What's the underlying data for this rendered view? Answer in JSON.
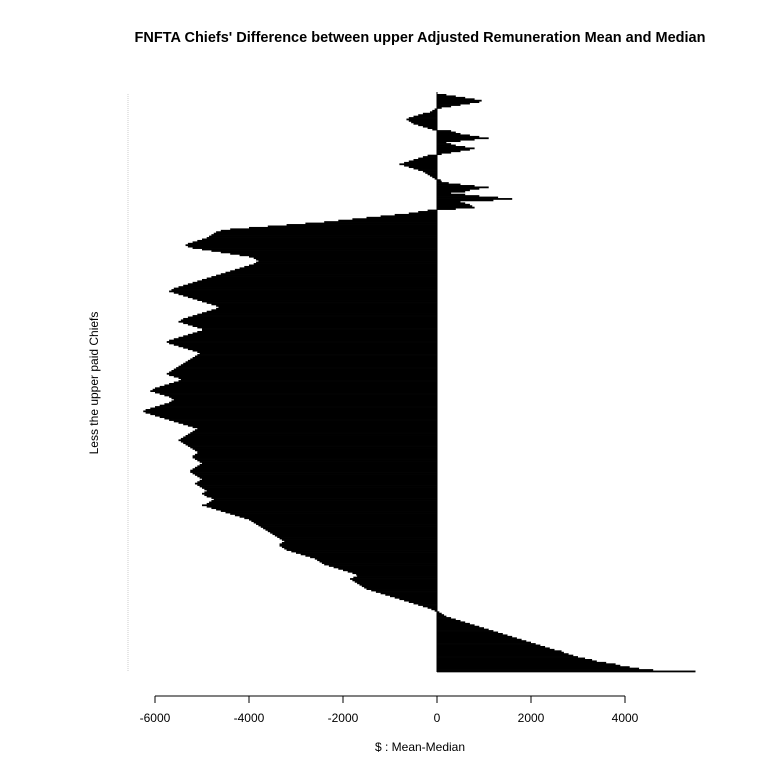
{
  "chart_data": {
    "type": "bar",
    "orientation": "horizontal",
    "title": "FNFTA Chiefs' Difference between upper Adjusted Remuneration Mean and Median",
    "xlabel": "$ : Mean-Median",
    "ylabel": "Less the upper paid Chiefs",
    "xlim": [
      -6500,
      5500
    ],
    "x_ticks": [
      -6000,
      -4000,
      -2000,
      0,
      2000,
      4000
    ],
    "tick_labels": [
      "-6000",
      "-4000",
      "-2000",
      "0",
      "2000",
      "4000"
    ],
    "grid": false,
    "legend": "none",
    "bar_color": "#000000",
    "series": [
      {
        "values": [
          5500,
          4600,
          4300,
          4100,
          3900,
          3800,
          3600,
          3400,
          3300,
          3150,
          3000,
          2900,
          2800,
          2700,
          2650,
          2500,
          2400,
          2300,
          2200,
          2100,
          2000,
          1900,
          1800,
          1700,
          1600,
          1500,
          1400,
          1300,
          1200,
          1100,
          1000,
          900,
          800,
          700,
          600,
          500,
          400,
          300,
          200,
          150,
          100,
          50,
          -50,
          -120,
          -200,
          -300,
          -400,
          -500,
          -600,
          -700,
          -800,
          -900,
          -1000,
          -1100,
          -1200,
          -1300,
          -1400,
          -1500,
          -1550,
          -1600,
          -1650,
          -1700,
          -1750,
          -1800,
          -1850,
          -1780,
          -1700,
          -1720,
          -1800,
          -1900,
          -2000,
          -2100,
          -2200,
          -2300,
          -2400,
          -2450,
          -2500,
          -2550,
          -2600,
          -2700,
          -2800,
          -2900,
          -3000,
          -3100,
          -3200,
          -3250,
          -3300,
          -3350,
          -3350,
          -3300,
          -3250,
          -3300,
          -3350,
          -3400,
          -3450,
          -3500,
          -3550,
          -3600,
          -3650,
          -3700,
          -3750,
          -3800,
          -3850,
          -3900,
          -3950,
          -4000,
          -4100,
          -4200,
          -4300,
          -4400,
          -4500,
          -4600,
          -4700,
          -4800,
          -4900,
          -5000,
          -4900,
          -4850,
          -4800,
          -4750,
          -4800,
          -4900,
          -4950,
          -5000,
          -4950,
          -4900,
          -4950,
          -5000,
          -5050,
          -5100,
          -5150,
          -5100,
          -5050,
          -5000,
          -5050,
          -5100,
          -5150,
          -5200,
          -5250,
          -5250,
          -5200,
          -5150,
          -5100,
          -5050,
          -5000,
          -5050,
          -5100,
          -5150,
          -5200,
          -5200,
          -5150,
          -5100,
          -5100,
          -5150,
          -5200,
          -5250,
          -5300,
          -5350,
          -5400,
          -5450,
          -5500,
          -5450,
          -5400,
          -5350,
          -5300,
          -5250,
          -5200,
          -5150,
          -5100,
          -5200,
          -5300,
          -5400,
          -5500,
          -5600,
          -5700,
          -5800,
          -5900,
          -6000,
          -6100,
          -6200,
          -6250,
          -6200,
          -6100,
          -6000,
          -5900,
          -5800,
          -5700,
          -5650,
          -5600,
          -5650,
          -5700,
          -5800,
          -5900,
          -6000,
          -6100,
          -6050,
          -6000,
          -5900,
          -5800,
          -5700,
          -5600,
          -5500,
          -5450,
          -5500,
          -5600,
          -5700,
          -5750,
          -5700,
          -5650,
          -5600,
          -5550,
          -5500,
          -5450,
          -5400,
          -5350,
          -5300,
          -5250,
          -5200,
          -5150,
          -5100,
          -5050,
          -5100,
          -5200,
          -5300,
          -5400,
          -5500,
          -5600,
          -5700,
          -5750,
          -5700,
          -5600,
          -5500,
          -5400,
          -5300,
          -5200,
          -5100,
          -5000,
          -5000,
          -5100,
          -5200,
          -5300,
          -5400,
          -5500,
          -5450,
          -5400,
          -5300,
          -5200,
          -5100,
          -5000,
          -4900,
          -4800,
          -4700,
          -4650,
          -4700,
          -4800,
          -4900,
          -5000,
          -5100,
          -5200,
          -5300,
          -5400,
          -5500,
          -5600,
          -5700,
          -5650,
          -5600,
          -5500,
          -5400,
          -5300,
          -5200,
          -5100,
          -5000,
          -4900,
          -4800,
          -4700,
          -4600,
          -4500,
          -4400,
          -4300,
          -4200,
          -4100,
          -4000,
          -3900,
          -3850,
          -3800,
          -3850,
          -3900,
          -4000,
          -4200,
          -4400,
          -4600,
          -4800,
          -5000,
          -5200,
          -5300,
          -5350,
          -5300,
          -5200,
          -5100,
          -5000,
          -4900,
          -4850,
          -4800,
          -4750,
          -4700,
          -4600,
          -4400,
          -4000,
          -3600,
          -3200,
          -2800,
          -2400,
          -2100,
          -1800,
          -1500,
          -1200,
          -900,
          -600,
          -400,
          -200,
          400,
          800,
          750,
          700,
          600,
          500,
          1200,
          1600,
          1300,
          900,
          600,
          300,
          600,
          700,
          900,
          1100,
          800,
          500,
          250,
          100,
          80,
          -50,
          -100,
          -150,
          -200,
          -250,
          -300,
          -400,
          -500,
          -600,
          -700,
          -800,
          -700,
          -600,
          -500,
          -400,
          -300,
          -200,
          100,
          300,
          500,
          700,
          800,
          600,
          400,
          300,
          200,
          500,
          800,
          1100,
          900,
          700,
          500,
          400,
          300,
          -100,
          -200,
          -300,
          -400,
          -500,
          -550,
          -600,
          -650,
          -600,
          -500,
          -400,
          -300,
          -150,
          -100,
          -50,
          100,
          300,
          500,
          700,
          900,
          950,
          800,
          600,
          400,
          200
        ]
      }
    ]
  }
}
